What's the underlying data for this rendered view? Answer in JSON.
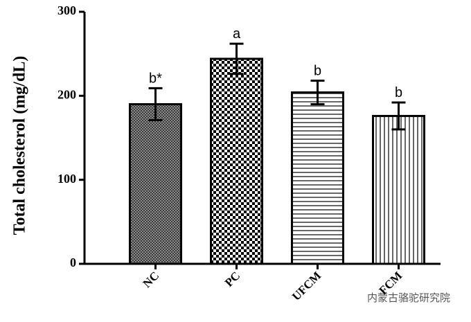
{
  "chart_data": {
    "type": "bar",
    "y_label": "Total cholesterol (mg/dL)",
    "categories": [
      "NC",
      "PC",
      "UFCM",
      "FCM"
    ],
    "values": [
      190,
      244,
      204,
      176
    ],
    "errors": [
      19,
      18,
      14,
      16
    ],
    "annotations": [
      "b*",
      "a",
      "b",
      "b"
    ],
    "patterns": [
      "crosshatch",
      "checker",
      "horizontal",
      "vertical"
    ],
    "ylim": [
      0,
      300
    ],
    "yticks": [
      0,
      100,
      200,
      300
    ]
  },
  "watermark": "内蒙古骆驼研究院"
}
